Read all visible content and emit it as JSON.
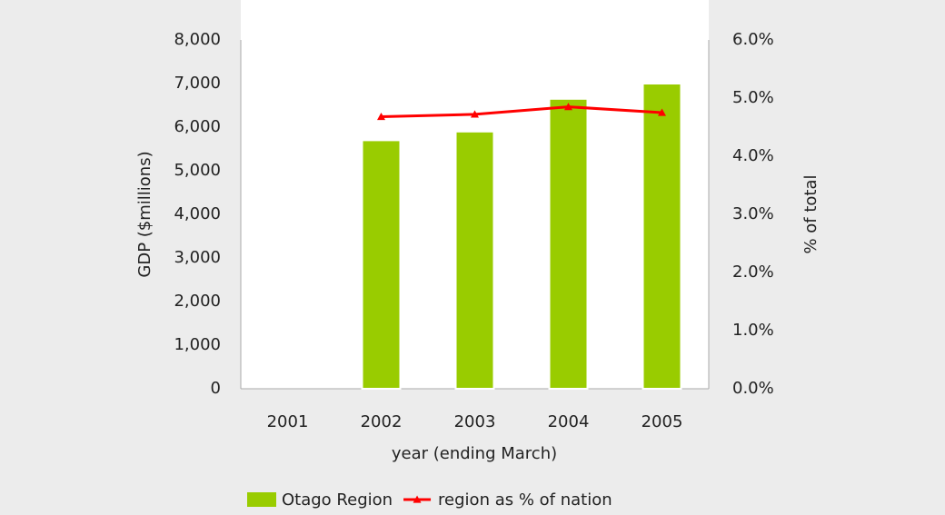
{
  "chart_data": {
    "type": "bar_line",
    "x_label": "year (ending March)",
    "y_label": "GDP ($millions)",
    "y2_label": "% of total",
    "categories": [
      "2001",
      "2002",
      "2003",
      "2004",
      "2005"
    ],
    "series": [
      {
        "name": "Otago Region",
        "type": "bar",
        "color": "#99cc00",
        "values": [
          null,
          5700,
          5900,
          6650,
          7000
        ]
      },
      {
        "name": "region as % of nation",
        "type": "line",
        "axis": "y2",
        "color": "#ff0000",
        "values": [
          null,
          4.68,
          4.72,
          4.85,
          4.75
        ]
      }
    ],
    "ylim": [
      0,
      8000
    ],
    "yticks": [
      0,
      {
        "value": 1000,
        "label": "1,000"
      },
      {
        "value": 2000,
        "label": "2,000"
      },
      {
        "value": 3000,
        "label": "3,000"
      },
      {
        "value": 4000,
        "label": "4,000"
      },
      {
        "value": 5000,
        "label": "5,000"
      },
      {
        "value": 6000,
        "label": "6,000"
      },
      {
        "value": 7000,
        "label": "7,000"
      },
      {
        "value": 8000,
        "label": "8,000"
      }
    ],
    "y2lim": [
      0,
      6
    ],
    "y2ticks": [
      {
        "value": 0,
        "label": "0.0%"
      },
      {
        "value": 1,
        "label": "1.0%"
      },
      {
        "value": 2,
        "label": "2.0%"
      },
      {
        "value": 3,
        "label": "3.0%"
      },
      {
        "value": 4,
        "label": "4.0%"
      },
      {
        "value": 5,
        "label": "5.0%"
      },
      {
        "value": 6,
        "label": "6.0%"
      }
    ],
    "grid": false,
    "legend": "bottom"
  }
}
